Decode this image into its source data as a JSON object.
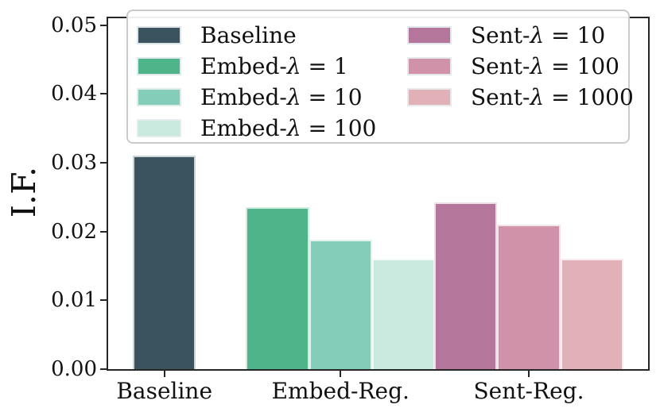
{
  "chart_data": {
    "type": "bar",
    "title": "",
    "xlabel": "",
    "ylabel": "I.F.",
    "ylim": [
      0,
      0.051
    ],
    "grid": false,
    "y_axis": {
      "tick_values": [
        0.0,
        0.01,
        0.02,
        0.03,
        0.04,
        0.05
      ],
      "tick_labels": [
        "0.00",
        "0.01",
        "0.02",
        "0.03",
        "0.04",
        "0.05"
      ]
    },
    "categories": [
      "Baseline",
      "Embed-Reg.",
      "Sent-Reg."
    ],
    "groups": [
      {
        "label": "Baseline",
        "bars": [
          {
            "legend": "Baseline",
            "value": 0.031,
            "color": "#3a535f"
          }
        ]
      },
      {
        "label": "Embed-Reg.",
        "bars": [
          {
            "legend": "Embed-λ = 1",
            "value": 0.0235,
            "color": "#4fb48a"
          },
          {
            "legend": "Embed-λ = 10",
            "value": 0.0188,
            "color": "#84cdb8"
          },
          {
            "legend": "Embed-λ = 100",
            "value": 0.016,
            "color": "#c9e8de"
          }
        ]
      },
      {
        "label": "Sent-Reg.",
        "bars": [
          {
            "legend": "Sent-λ = 10",
            "value": 0.0242,
            "color": "#b4779b"
          },
          {
            "legend": "Sent-λ = 100",
            "value": 0.021,
            "color": "#cf92a9"
          },
          {
            "legend": "Sent-λ = 1000",
            "value": 0.016,
            "color": "#e2b0b7"
          }
        ]
      }
    ],
    "legend": {
      "position": "upper center",
      "columns": 2,
      "entries": [
        {
          "label": "Baseline",
          "color": "#3a535f"
        },
        {
          "label": "Embed-λ = 1",
          "color": "#4fb48a"
        },
        {
          "label": "Embed-λ = 10",
          "color": "#84cdb8"
        },
        {
          "label": "Embed-λ = 100",
          "color": "#c9e8de"
        },
        {
          "label": "Sent-λ = 10",
          "color": "#b4779b"
        },
        {
          "label": "Sent-λ = 100",
          "color": "#cf92a9"
        },
        {
          "label": "Sent-λ = 1000",
          "color": "#e2b0b7"
        }
      ]
    }
  }
}
